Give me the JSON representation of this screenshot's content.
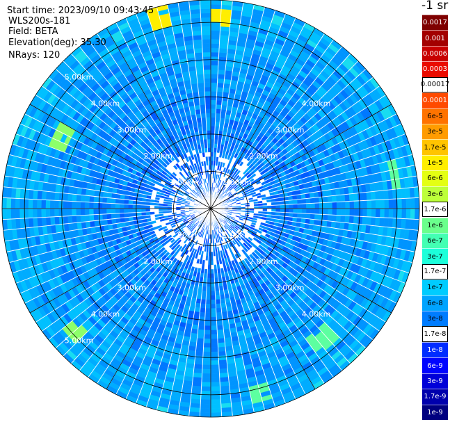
{
  "info": {
    "start_time": "Start time: 2023/09/10 09:43:45",
    "station": "WLS200s-181",
    "field": "Field: BETA",
    "elevation": "Elevation(deg): 35.30",
    "nrays": "NRays: 120"
  },
  "colorbar": {
    "title": "-1 sr",
    "entries": [
      {
        "label": "0.0017",
        "color": "#7f0000",
        "text": "#ffffff"
      },
      {
        "label": "0.001",
        "color": "#a30000",
        "text": "#ffffff"
      },
      {
        "label": "0.0006",
        "color": "#c80000",
        "text": "#ffffff"
      },
      {
        "label": "0.0003",
        "color": "#ea0c00",
        "text": "#ffffff"
      },
      {
        "label": "0.00017",
        "color": "#ffffff",
        "text": "#000000"
      },
      {
        "label": "0.0001",
        "color": "#ff4a00",
        "text": "#ffffff"
      },
      {
        "label": "6e-5",
        "color": "#ff7300",
        "text": "#000000"
      },
      {
        "label": "3e-5",
        "color": "#ff9c00",
        "text": "#000000"
      },
      {
        "label": "1.7e-5",
        "color": "#ffc400",
        "text": "#000000"
      },
      {
        "label": "1e-5",
        "color": "#ffee00",
        "text": "#000000"
      },
      {
        "label": "6e-6",
        "color": "#e4ff13",
        "text": "#000000"
      },
      {
        "label": "3e-6",
        "color": "#bdff3a",
        "text": "#000000"
      },
      {
        "label": "1.7e-6",
        "color": "#ffffff",
        "text": "#000000"
      },
      {
        "label": "1e-6",
        "color": "#6aff8c",
        "text": "#000000"
      },
      {
        "label": "6e-7",
        "color": "#43ffb3",
        "text": "#000000"
      },
      {
        "label": "3e-7",
        "color": "#1cffda",
        "text": "#000000"
      },
      {
        "label": "1.7e-7",
        "color": "#ffffff",
        "text": "#000000"
      },
      {
        "label": "1e-7",
        "color": "#00ccff",
        "text": "#000000"
      },
      {
        "label": "6e-8",
        "color": "#00a4ff",
        "text": "#000000"
      },
      {
        "label": "3e-8",
        "color": "#007cff",
        "text": "#000000"
      },
      {
        "label": "1.7e-8",
        "color": "#ffffff",
        "text": "#000000"
      },
      {
        "label": "1e-8",
        "color": "#002cff",
        "text": "#ffffff"
      },
      {
        "label": "6e-9",
        "color": "#0004ff",
        "text": "#ffffff"
      },
      {
        "label": "3e-9",
        "color": "#0000d8",
        "text": "#ffffff"
      },
      {
        "label": "1.7e-9",
        "color": "#0000ad",
        "text": "#ffffff"
      },
      {
        "label": "1e-9",
        "color": "#000080",
        "text": "#ffffff"
      }
    ]
  },
  "chart_data": {
    "type": "heatmap",
    "projection": "polar",
    "n_rays": 120,
    "range_rings_km": [
      1,
      2,
      3,
      4,
      5
    ],
    "ring_labels": [
      "1.00km",
      "2.00km",
      "3.00km",
      "4.00km",
      "5.00km"
    ],
    "spokes_deg": [
      0,
      30,
      60,
      90,
      120,
      150,
      180,
      210,
      240,
      270,
      300,
      330
    ],
    "max_range_km": 5.6,
    "typical_value": "1e-7 to 3e-8",
    "highlights": [
      {
        "azimuth_deg": 3,
        "range_km": 5.1,
        "value": "1e-5"
      },
      {
        "azimuth_deg": 345,
        "range_km": 5.3,
        "value": "1e-5"
      },
      {
        "azimuth_deg": 295,
        "range_km": 4.4,
        "value": "1e-6"
      },
      {
        "azimuth_deg": 140,
        "range_km": 4.6,
        "value": "6e-7"
      },
      {
        "azimuth_deg": 165,
        "range_km": 5.2,
        "value": "6e-7"
      },
      {
        "azimuth_deg": 228,
        "range_km": 4.9,
        "value": "1e-6"
      },
      {
        "azimuth_deg": 80,
        "range_km": 4.9,
        "value": "6e-7"
      }
    ]
  }
}
